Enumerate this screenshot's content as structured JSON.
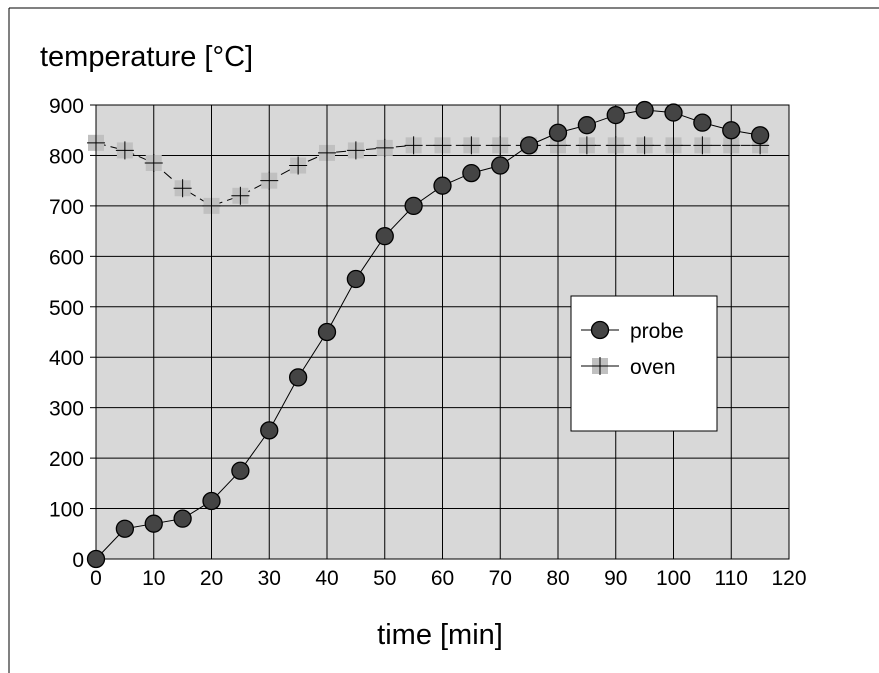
{
  "chart_data": {
    "type": "line",
    "title": "",
    "xlabel": "time [min]",
    "ylabel": "temperature [°C]",
    "xlim": [
      0,
      120
    ],
    "ylim": [
      0,
      900
    ],
    "xticks": [
      0,
      10,
      20,
      30,
      40,
      50,
      60,
      70,
      80,
      90,
      100,
      110,
      120
    ],
    "yticks": [
      0,
      100,
      200,
      300,
      400,
      500,
      600,
      700,
      800,
      900
    ],
    "grid": true,
    "legend_position": "right",
    "plot_background": "#d8d8d8",
    "x": [
      0,
      5,
      10,
      15,
      20,
      25,
      30,
      35,
      40,
      45,
      50,
      55,
      60,
      65,
      70,
      75,
      80,
      85,
      90,
      95,
      100,
      105,
      110,
      115
    ],
    "series": [
      {
        "name": "probe",
        "marker": "circle",
        "color": "#444444",
        "values": [
          0,
          60,
          70,
          80,
          115,
          175,
          255,
          360,
          450,
          555,
          640,
          700,
          740,
          765,
          780,
          820,
          845,
          860,
          880,
          890,
          885,
          865,
          850,
          840
        ]
      },
      {
        "name": "oven",
        "marker": "plus-square",
        "color": "#c0c0c0",
        "values": [
          825,
          810,
          785,
          735,
          700,
          720,
          750,
          780,
          805,
          810,
          815,
          820,
          820,
          820,
          820,
          820,
          820,
          820,
          820,
          820,
          820,
          820,
          820,
          820
        ]
      }
    ]
  }
}
